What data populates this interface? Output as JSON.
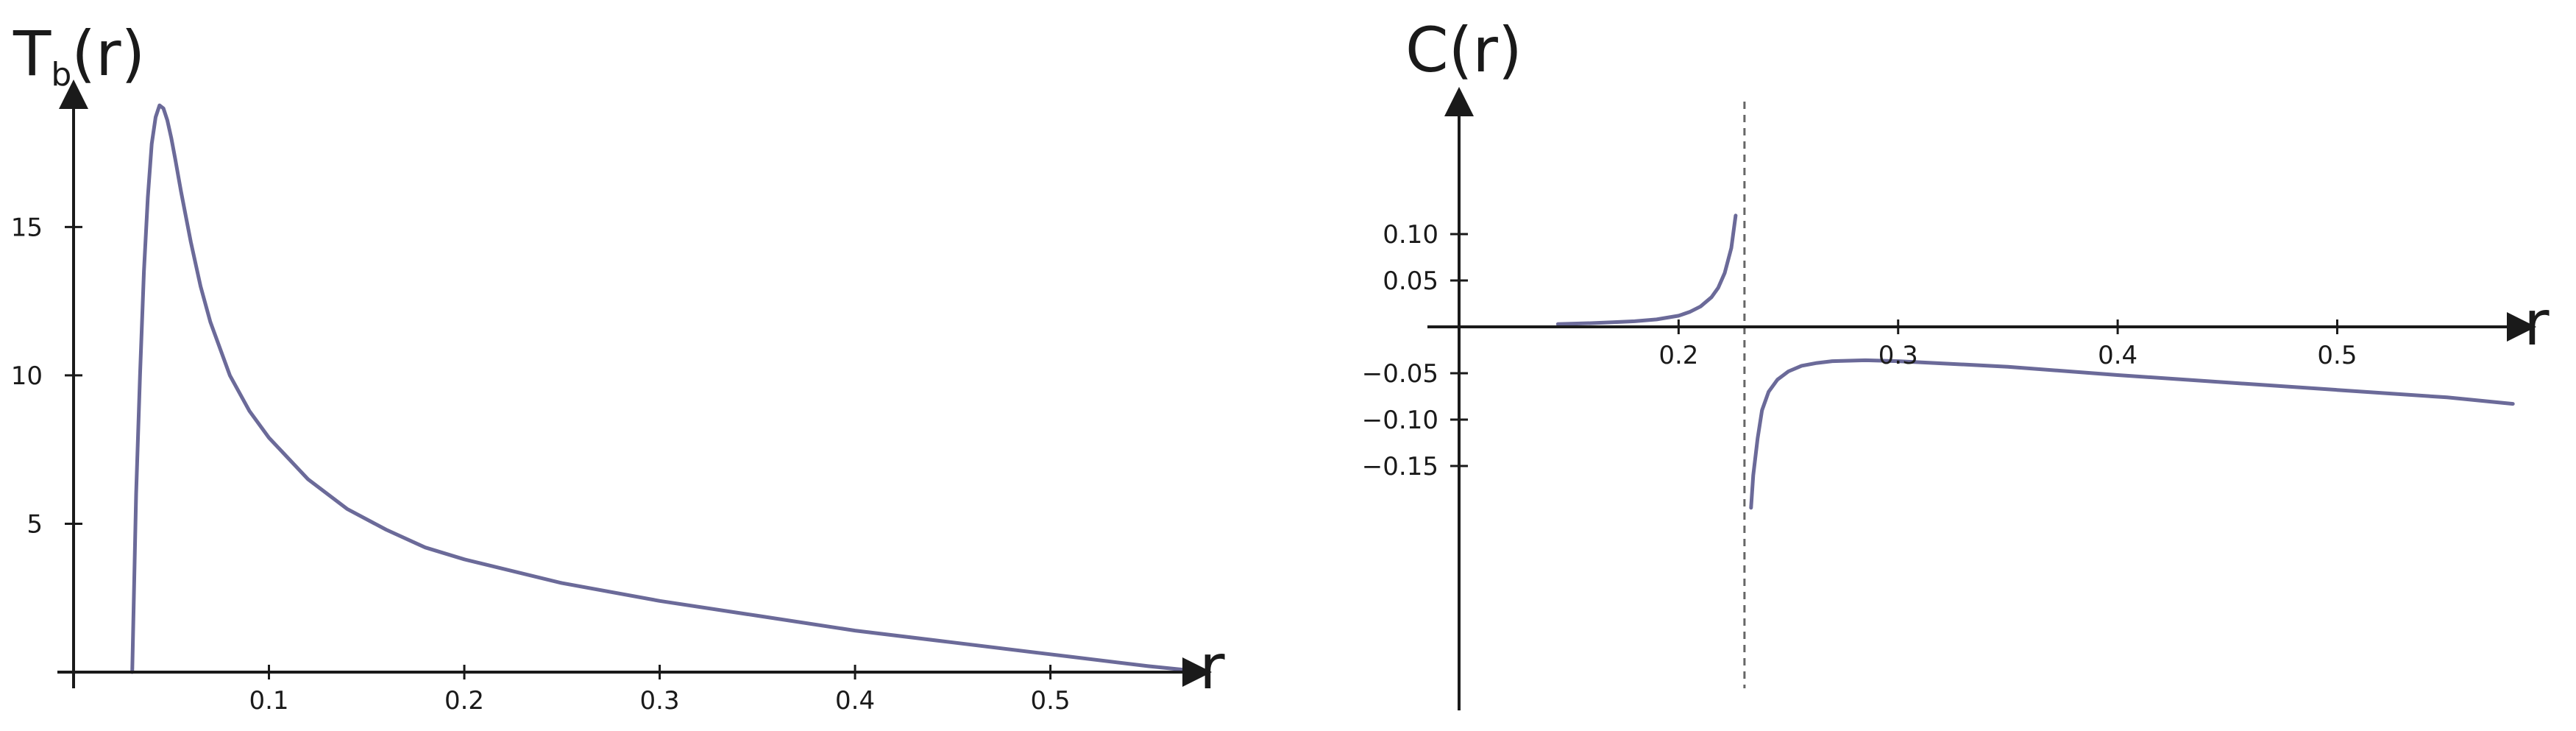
{
  "colors": {
    "curve": "#6b6a99",
    "axis": "#1a1a1a",
    "asymptote": "#666666"
  },
  "chart_data": [
    {
      "type": "line",
      "ylabel_main": "T",
      "ylabel_sub": "b",
      "ylabel_tail": "(r)",
      "xlabel": "r",
      "xlim": [
        0,
        0.58
      ],
      "ylim": [
        0,
        19.5
      ],
      "xticks": [
        0.1,
        0.2,
        0.3,
        0.4,
        0.5
      ],
      "xtick_labels": [
        "0.1",
        "0.2",
        "0.3",
        "0.4",
        "0.5"
      ],
      "yticks": [
        5,
        10,
        15
      ],
      "ytick_labels": [
        "5",
        "10",
        "15"
      ],
      "series": [
        {
          "x": [
            0.03,
            0.032,
            0.034,
            0.036,
            0.038,
            0.04,
            0.042,
            0.044,
            0.046,
            0.048,
            0.05,
            0.052,
            0.055,
            0.06,
            0.065,
            0.07,
            0.08,
            0.09,
            0.1,
            0.12,
            0.14,
            0.16,
            0.18,
            0.2,
            0.25,
            0.3,
            0.35,
            0.4,
            0.45,
            0.5,
            0.55,
            0.58
          ],
          "y": [
            0.0,
            6.0,
            10.0,
            13.5,
            16.0,
            17.8,
            18.7,
            19.1,
            19.0,
            18.6,
            18.0,
            17.3,
            16.2,
            14.5,
            13.0,
            11.8,
            10.0,
            8.8,
            7.9,
            6.5,
            5.5,
            4.8,
            4.2,
            3.8,
            3.0,
            2.4,
            1.9,
            1.4,
            1.0,
            0.6,
            0.2,
            0.0
          ]
        }
      ]
    },
    {
      "type": "line",
      "ylabel": "C(r)",
      "xlabel": "r",
      "xlim": [
        0.1,
        0.59
      ],
      "ylim": [
        -0.2,
        0.12
      ],
      "asymptote_x": 0.23,
      "xticks": [
        0.2,
        0.3,
        0.4,
        0.5
      ],
      "xtick_labels": [
        "0.2",
        "0.3",
        "0.4",
        "0.5"
      ],
      "yticks": [
        0.1,
        0.05,
        -0.05,
        -0.1,
        -0.15
      ],
      "ytick_labels": [
        "0.10",
        "0.05",
        "−0.05",
        "−0.10",
        "−0.15"
      ],
      "series": [
        {
          "x": [
            0.145,
            0.16,
            0.17,
            0.18,
            0.19,
            0.2,
            0.205,
            0.21,
            0.215,
            0.218,
            0.221,
            0.224,
            0.226
          ],
          "y": [
            0.003,
            0.004,
            0.005,
            0.006,
            0.008,
            0.012,
            0.016,
            0.022,
            0.032,
            0.042,
            0.058,
            0.085,
            0.12
          ]
        },
        {
          "x": [
            0.233,
            0.234,
            0.236,
            0.238,
            0.241,
            0.245,
            0.25,
            0.256,
            0.263,
            0.27,
            0.285,
            0.3,
            0.35,
            0.4,
            0.45,
            0.5,
            0.55,
            0.58
          ],
          "y": [
            -0.195,
            -0.16,
            -0.12,
            -0.09,
            -0.07,
            -0.057,
            -0.048,
            -0.042,
            -0.039,
            -0.037,
            -0.036,
            -0.037,
            -0.043,
            -0.052,
            -0.06,
            -0.068,
            -0.076,
            -0.083
          ]
        }
      ]
    }
  ]
}
